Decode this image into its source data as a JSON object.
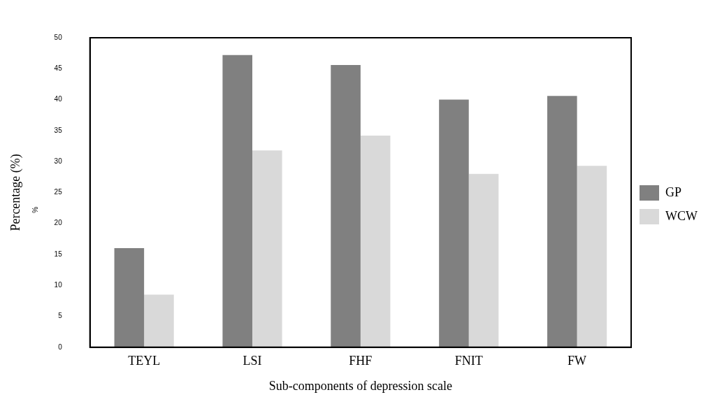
{
  "chart_data": {
    "type": "bar",
    "xlabel": "Sub-components of depression scale",
    "ylabel": "Percentage (%)",
    "annotations": [
      "%"
    ],
    "categories": [
      "TEYL",
      "LSI",
      "FHF",
      "FNIT",
      "FW"
    ],
    "series": [
      {
        "name": "GP",
        "color": "#808080",
        "values": [
          16,
          47.2,
          45.6,
          40,
          40.6
        ]
      },
      {
        "name": "WCW",
        "color": "#d9d9d9",
        "values": [
          8.5,
          31.8,
          34.2,
          28,
          29.3
        ]
      }
    ],
    "ylim": [
      0,
      50
    ],
    "yticks": [
      0,
      5,
      10,
      15,
      20,
      25,
      30,
      35,
      40,
      45,
      50
    ],
    "grid": false,
    "legend": "right"
  }
}
